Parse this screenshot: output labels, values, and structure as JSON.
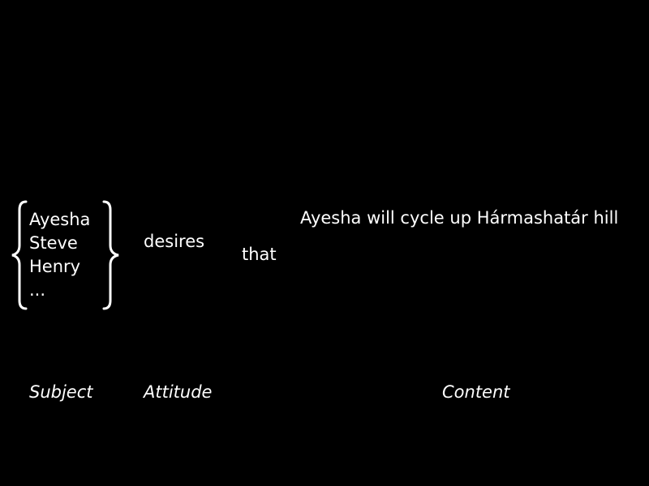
{
  "subjects": [
    "Ayesha",
    "Steve",
    "Henry",
    "..."
  ],
  "attitude": "desires",
  "connector": "that",
  "content": "Ayesha will cycle up Hármashatár hill",
  "labels": {
    "subject": "Subject",
    "attitude": "Attitude",
    "content": "Content"
  },
  "colors": {
    "background": "#000000",
    "foreground": "#ffffff"
  }
}
